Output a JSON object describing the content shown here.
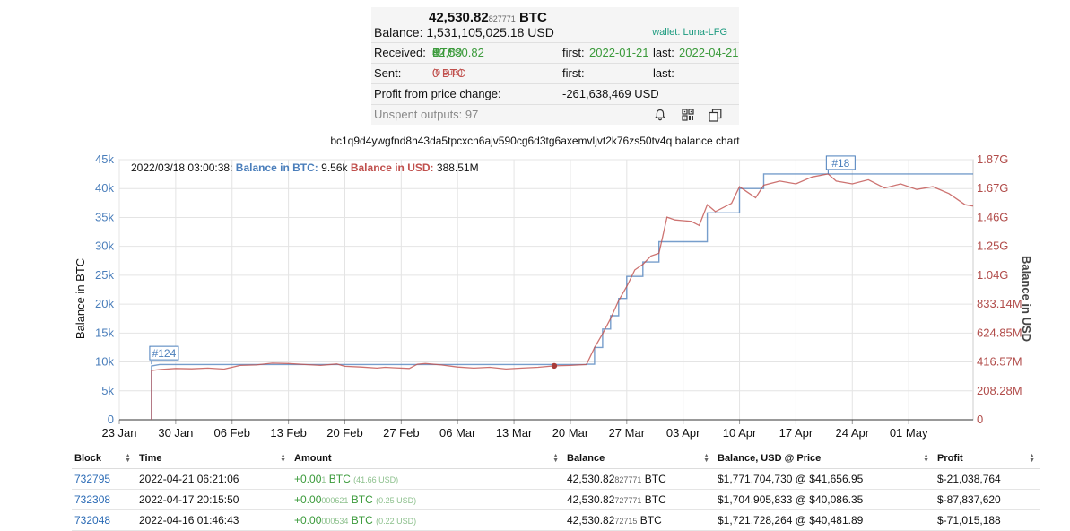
{
  "summary": {
    "btc_main": "42,530.82",
    "btc_small": "827771",
    "btc_unit": "BTC",
    "balance_label": "Balance:",
    "balance_usd": "1,531,105,025.18 USD",
    "wallet": "wallet: Luna-LFG",
    "received_label": "Received:",
    "received_main": "42,530.82",
    "received_small": "83",
    "received_unit": "BTC",
    "received_ins": "(97 ins)",
    "first_label": "first:",
    "received_first": "2022-01-21",
    "last_label": "last:",
    "received_last": "2022-04-21",
    "sent_label": "Sent:",
    "sent_value": "0 BTC",
    "sent_outs": "(0 outs)",
    "profit_label": "Profit from price change:",
    "profit_value": "-261,638,469 USD",
    "unspent": "Unspent outputs: 97",
    "icons": [
      "bell-icon",
      "qr-code-icon",
      "copy-icon"
    ]
  },
  "chart_title": "bc1q9d4ywgfnd8h43da5tpcxcn6ajv590cg6d3tg6axemvljvt2k76zs50tv4q balance chart",
  "chart_data": {
    "type": "line",
    "tooltip": {
      "date": "2022/03/18 03:00:38:",
      "btc_label": "Balance in BTC:",
      "btc_value": "9.56k",
      "usd_label": "Balance in USD:",
      "usd_value": "388.51M"
    },
    "x_ticks": [
      "23 Jan",
      "30 Jan",
      "06 Feb",
      "13 Feb",
      "20 Feb",
      "27 Feb",
      "06 Mar",
      "13 Mar",
      "20 Mar",
      "27 Mar",
      "03 Apr",
      "10 Apr",
      "17 Apr",
      "24 Apr",
      "01 May"
    ],
    "y_left_label": "Balance in BTC",
    "y_left_ticks": [
      "0",
      "5k",
      "10k",
      "15k",
      "20k",
      "25k",
      "30k",
      "35k",
      "40k",
      "45k"
    ],
    "y_left_lim": [
      0,
      45000
    ],
    "y_right_label": "Balance in USD",
    "y_right_ticks": [
      "0",
      "208.28M",
      "416.57M",
      "624.85M",
      "833.14M",
      "1.04G",
      "1.25G",
      "1.46G",
      "1.67G",
      "1.87G"
    ],
    "y_right_lim": [
      0,
      1874500000
    ],
    "x_range": [
      "2022-01-23",
      "2022-05-09"
    ],
    "annotations": [
      {
        "label": "#124",
        "date": "2022-01-27",
        "btc": 9600
      },
      {
        "label": "#18",
        "date": "2022-04-21",
        "btc": 42530
      }
    ],
    "marker": {
      "date": "2022-03-18",
      "usd": 388510000
    },
    "series": [
      {
        "name": "Balance in BTC",
        "color": "#4a7ebb",
        "points": [
          [
            "2022-01-27",
            0
          ],
          [
            "2022-01-27",
            9300
          ],
          [
            "2022-01-28",
            9560
          ],
          [
            "2022-03-22",
            9560
          ],
          [
            "2022-03-22",
            9600
          ],
          [
            "2022-03-23",
            9600
          ],
          [
            "2022-03-23",
            12500
          ],
          [
            "2022-03-24",
            12500
          ],
          [
            "2022-03-24",
            15700
          ],
          [
            "2022-03-25",
            15700
          ],
          [
            "2022-03-25",
            18000
          ],
          [
            "2022-03-26",
            18000
          ],
          [
            "2022-03-26",
            21000
          ],
          [
            "2022-03-27",
            21000
          ],
          [
            "2022-03-27",
            24800
          ],
          [
            "2022-03-29",
            24800
          ],
          [
            "2022-03-29",
            27300
          ],
          [
            "2022-03-31",
            27300
          ],
          [
            "2022-03-31",
            30800
          ],
          [
            "2022-04-06",
            30800
          ],
          [
            "2022-04-06",
            35800
          ],
          [
            "2022-04-10",
            35800
          ],
          [
            "2022-04-10",
            40000
          ],
          [
            "2022-04-13",
            40000
          ],
          [
            "2022-04-13",
            42530
          ],
          [
            "2022-05-09",
            42530
          ]
        ]
      },
      {
        "name": "Balance in USD",
        "color": "#c0504d",
        "points": [
          [
            "2022-01-27",
            0
          ],
          [
            "2022-01-27",
            355000000
          ],
          [
            "2022-01-28",
            362000000
          ],
          [
            "2022-01-30",
            370000000
          ],
          [
            "2022-02-01",
            367000000
          ],
          [
            "2022-02-03",
            372000000
          ],
          [
            "2022-02-05",
            365000000
          ],
          [
            "2022-02-06",
            378000000
          ],
          [
            "2022-02-07",
            392000000
          ],
          [
            "2022-02-09",
            395000000
          ],
          [
            "2022-02-11",
            408000000
          ],
          [
            "2022-02-13",
            405000000
          ],
          [
            "2022-02-15",
            398000000
          ],
          [
            "2022-02-17",
            392000000
          ],
          [
            "2022-02-19",
            402000000
          ],
          [
            "2022-02-20",
            385000000
          ],
          [
            "2022-02-22",
            380000000
          ],
          [
            "2022-02-24",
            372000000
          ],
          [
            "2022-02-25",
            378000000
          ],
          [
            "2022-02-26",
            375000000
          ],
          [
            "2022-02-28",
            370000000
          ],
          [
            "2022-03-01",
            400000000
          ],
          [
            "2022-03-02",
            405000000
          ],
          [
            "2022-03-04",
            395000000
          ],
          [
            "2022-03-06",
            380000000
          ],
          [
            "2022-03-08",
            372000000
          ],
          [
            "2022-03-10",
            378000000
          ],
          [
            "2022-03-12",
            366000000
          ],
          [
            "2022-03-14",
            372000000
          ],
          [
            "2022-03-16",
            378000000
          ],
          [
            "2022-03-18",
            388510000
          ],
          [
            "2022-03-20",
            392000000
          ],
          [
            "2022-03-22",
            398000000
          ],
          [
            "2022-03-23",
            520000000
          ],
          [
            "2022-03-24",
            620000000
          ],
          [
            "2022-03-25",
            730000000
          ],
          [
            "2022-03-26",
            860000000
          ],
          [
            "2022-03-27",
            960000000
          ],
          [
            "2022-03-28",
            1080000000
          ],
          [
            "2022-03-29",
            1120000000
          ],
          [
            "2022-03-30",
            1180000000
          ],
          [
            "2022-03-31",
            1200000000
          ],
          [
            "2022-04-01",
            1460000000
          ],
          [
            "2022-04-02",
            1440000000
          ],
          [
            "2022-04-04",
            1430000000
          ],
          [
            "2022-04-05",
            1400000000
          ],
          [
            "2022-04-06",
            1550000000
          ],
          [
            "2022-04-07",
            1500000000
          ],
          [
            "2022-04-09",
            1560000000
          ],
          [
            "2022-04-10",
            1680000000
          ],
          [
            "2022-04-11",
            1640000000
          ],
          [
            "2022-04-12",
            1600000000
          ],
          [
            "2022-04-13",
            1690000000
          ],
          [
            "2022-04-15",
            1720000000
          ],
          [
            "2022-04-17",
            1700000000
          ],
          [
            "2022-04-19",
            1750000000
          ],
          [
            "2022-04-21",
            1771700000
          ],
          [
            "2022-04-22",
            1720000000
          ],
          [
            "2022-04-24",
            1700000000
          ],
          [
            "2022-04-26",
            1730000000
          ],
          [
            "2022-04-28",
            1670000000
          ],
          [
            "2022-04-30",
            1700000000
          ],
          [
            "2022-05-02",
            1660000000
          ],
          [
            "2022-05-04",
            1680000000
          ],
          [
            "2022-05-06",
            1630000000
          ],
          [
            "2022-05-08",
            1550000000
          ],
          [
            "2022-05-09",
            1540000000
          ]
        ]
      }
    ]
  },
  "table": {
    "headers": [
      "Block",
      "Time",
      "Amount",
      "Balance",
      "Balance, USD @ Price",
      "Profit"
    ],
    "rows": [
      {
        "block": "732795",
        "time": "2022-04-21 06:21:06",
        "amount_main": "+0.00",
        "amount_small": "1",
        "amount_unit": "BTC",
        "amount_usd": "(41.66 USD)",
        "bal_main": "42,530.82",
        "bal_small": "827771",
        "bal_unit": "BTC",
        "usd_price": "$1,771,704,730 @ $41,656.95",
        "profit": "$-21,038,764"
      },
      {
        "block": "732308",
        "time": "2022-04-17 20:15:50",
        "amount_main": "+0.00",
        "amount_small": "000621",
        "amount_unit": "BTC",
        "amount_usd": "(0.25 USD)",
        "bal_main": "42,530.82",
        "bal_small": "727771",
        "bal_unit": "BTC",
        "usd_price": "$1,704,905,833 @ $40,086.35",
        "profit": "$-87,837,620"
      },
      {
        "block": "732048",
        "time": "2022-04-16 01:46:43",
        "amount_main": "+0.00",
        "amount_small": "000534",
        "amount_unit": "BTC",
        "amount_usd": "(0.22 USD)",
        "bal_main": "42,530.82",
        "bal_small": "72715",
        "bal_unit": "BTC",
        "usd_price": "$1,721,728,264 @ $40,481.89",
        "profit": "$-71,015,188"
      }
    ]
  }
}
